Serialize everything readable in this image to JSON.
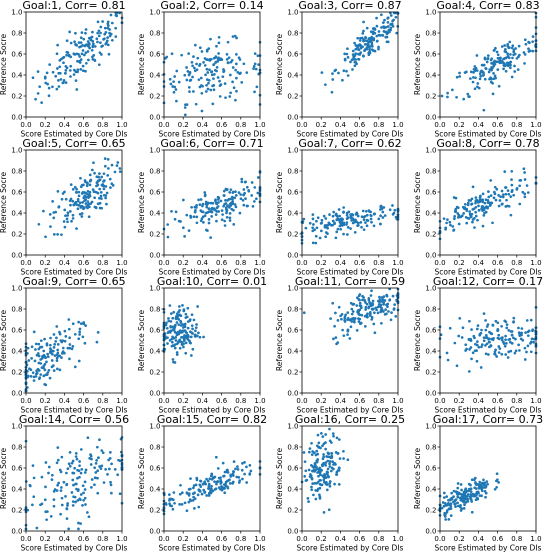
{
  "figure": {
    "series_color": "#1f77b4"
  },
  "chart_data": [
    {
      "type": "scatter",
      "title": "Goal:1, Corr= 0.81",
      "xlabel": "Score Estimated by Core DIs",
      "ylabel": "Reference Socre",
      "xlim": [
        0,
        1
      ],
      "ylim": [
        0,
        1
      ],
      "xticks": [
        "0.0",
        "0.2",
        "0.4",
        "0.6",
        "0.8",
        "1.0"
      ],
      "yticks": [
        "0.0",
        "0.2",
        "0.4",
        "0.6",
        "0.8",
        "1.0"
      ],
      "corr": 0.81,
      "x_center": 0.6,
      "x_spread": 0.23,
      "y_center": 0.62,
      "y_spread": 0.2
    },
    {
      "type": "scatter",
      "title": "Goal:2, Corr= 0.14",
      "xlabel": "Score Estimated by Core DIs",
      "ylabel": "Reference Socre",
      "xlim": [
        0,
        1
      ],
      "ylim": [
        0,
        1
      ],
      "xticks": [
        "0.0",
        "0.2",
        "0.4",
        "0.6",
        "0.8",
        "1.0"
      ],
      "yticks": [
        "0.0",
        "0.2",
        "0.4",
        "0.6",
        "0.8",
        "1.0"
      ],
      "corr": 0.14,
      "x_center": 0.5,
      "x_spread": 0.27,
      "y_center": 0.43,
      "y_spread": 0.14
    },
    {
      "type": "scatter",
      "title": "Goal:3, Corr= 0.87",
      "xlabel": "Score Estimated by Core DIs",
      "ylabel": "Reference Socre",
      "xlim": [
        0,
        1
      ],
      "ylim": [
        0,
        1
      ],
      "xticks": [
        "0.0",
        "0.2",
        "0.4",
        "0.6",
        "0.8",
        "1.0"
      ],
      "yticks": [
        "0.0",
        "0.2",
        "0.4",
        "0.6",
        "0.8",
        "1.0"
      ],
      "corr": 0.87,
      "x_center": 0.72,
      "x_spread": 0.18,
      "y_center": 0.72,
      "y_spread": 0.15
    },
    {
      "type": "scatter",
      "title": "Goal:4, Corr= 0.83",
      "xlabel": "Score Estimated by Core DIs",
      "ylabel": "Reference Socre",
      "xlim": [
        0,
        1
      ],
      "ylim": [
        0,
        1
      ],
      "xticks": [
        "0.0",
        "0.2",
        "0.4",
        "0.6",
        "0.8",
        "1.0"
      ],
      "yticks": [
        "0.0",
        "0.2",
        "0.4",
        "0.6",
        "0.8",
        "1.0"
      ],
      "corr": 0.83,
      "x_center": 0.6,
      "x_spread": 0.25,
      "y_center": 0.5,
      "y_spread": 0.16
    },
    {
      "type": "scatter",
      "title": "Goal:5, Corr= 0.65",
      "xlabel": "Score Estimated by Core DIs",
      "ylabel": "Reference Socre",
      "xlim": [
        0,
        1
      ],
      "ylim": [
        0,
        1
      ],
      "xticks": [
        "0.0",
        "0.2",
        "0.4",
        "0.6",
        "0.8",
        "1.0"
      ],
      "yticks": [
        "0.0",
        "0.2",
        "0.4",
        "0.6",
        "0.8",
        "1.0"
      ],
      "corr": 0.65,
      "x_center": 0.6,
      "x_spread": 0.16,
      "y_center": 0.55,
      "y_spread": 0.15
    },
    {
      "type": "scatter",
      "title": "Goal:6, Corr= 0.71",
      "xlabel": "Score Estimated by Core DIs",
      "ylabel": "Reference Socre",
      "xlim": [
        0,
        1
      ],
      "ylim": [
        0,
        1
      ],
      "xticks": [
        "0.0",
        "0.2",
        "0.4",
        "0.6",
        "0.8",
        "1.0"
      ],
      "yticks": [
        "0.0",
        "0.2",
        "0.4",
        "0.6",
        "0.8",
        "1.0"
      ],
      "corr": 0.71,
      "x_center": 0.6,
      "x_spread": 0.25,
      "y_center": 0.47,
      "y_spread": 0.12
    },
    {
      "type": "scatter",
      "title": "Goal:7, Corr= 0.62",
      "xlabel": "Score Estimated by Core DIs",
      "ylabel": "Reference Socre",
      "xlim": [
        0,
        1
      ],
      "ylim": [
        0,
        1
      ],
      "xticks": [
        "0.0",
        "0.2",
        "0.4",
        "0.6",
        "0.8",
        "1.0"
      ],
      "yticks": [
        "0.0",
        "0.2",
        "0.4",
        "0.6",
        "0.8",
        "1.0"
      ],
      "corr": 0.62,
      "x_center": 0.5,
      "x_spread": 0.28,
      "y_center": 0.33,
      "y_spread": 0.07
    },
    {
      "type": "scatter",
      "title": "Goal:8, Corr= 0.78",
      "xlabel": "Score Estimated by Core DIs",
      "ylabel": "Reference Socre",
      "xlim": [
        0,
        1
      ],
      "ylim": [
        0,
        1
      ],
      "xticks": [
        "0.0",
        "0.2",
        "0.4",
        "0.6",
        "0.8",
        "1.0"
      ],
      "yticks": [
        "0.0",
        "0.2",
        "0.4",
        "0.6",
        "0.8",
        "1.0"
      ],
      "corr": 0.78,
      "x_center": 0.45,
      "x_spread": 0.26,
      "y_center": 0.47,
      "y_spread": 0.13
    },
    {
      "type": "scatter",
      "title": "Goal:9, Corr= 0.65",
      "xlabel": "Score Estimated by Core DIs",
      "ylabel": "Reference Socre",
      "xlim": [
        0,
        1
      ],
      "ylim": [
        0,
        1
      ],
      "xticks": [
        "0.0",
        "0.2",
        "0.4",
        "0.6",
        "0.8",
        "1.0"
      ],
      "yticks": [
        "0.0",
        "0.2",
        "0.4",
        "0.6",
        "0.8",
        "1.0"
      ],
      "corr": 0.65,
      "x_center": 0.18,
      "x_spread": 0.2,
      "y_center": 0.33,
      "y_spread": 0.15
    },
    {
      "type": "scatter",
      "title": "Goal:10, Corr= 0.01",
      "xlabel": "Score Estimated by Core DIs",
      "ylabel": "Reference Socre",
      "xlim": [
        0,
        1
      ],
      "ylim": [
        0,
        1
      ],
      "xticks": [
        "0.0",
        "0.2",
        "0.4",
        "0.6",
        "0.8",
        "1.0"
      ],
      "yticks": [
        "0.0",
        "0.2",
        "0.4",
        "0.6",
        "0.8",
        "1.0"
      ],
      "corr": 0.01,
      "x_center": 0.15,
      "x_spread": 0.1,
      "y_center": 0.58,
      "y_spread": 0.12
    },
    {
      "type": "scatter",
      "title": "Goal:11, Corr= 0.59",
      "xlabel": "Score Estimated by Core DIs",
      "ylabel": "Reference Socre",
      "xlim": [
        0,
        1
      ],
      "ylim": [
        0,
        1
      ],
      "xticks": [
        "0.0",
        "0.2",
        "0.4",
        "0.6",
        "0.8",
        "1.0"
      ],
      "yticks": [
        "0.0",
        "0.2",
        "0.4",
        "0.6",
        "0.8",
        "1.0"
      ],
      "corr": 0.59,
      "x_center": 0.7,
      "x_spread": 0.2,
      "y_center": 0.8,
      "y_spread": 0.12
    },
    {
      "type": "scatter",
      "title": "Goal:12, Corr= 0.17",
      "xlabel": "Score Estimated by Core DIs",
      "ylabel": "Reference Socre",
      "xlim": [
        0,
        1
      ],
      "ylim": [
        0,
        1
      ],
      "xticks": [
        "0.0",
        "0.2",
        "0.4",
        "0.6",
        "0.8",
        "1.0"
      ],
      "yticks": [
        "0.0",
        "0.2",
        "0.4",
        "0.6",
        "0.8",
        "1.0"
      ],
      "corr": 0.17,
      "x_center": 0.6,
      "x_spread": 0.28,
      "y_center": 0.52,
      "y_spread": 0.1
    },
    {
      "type": "scatter",
      "title": "Goal:14, Corr= 0.56",
      "xlabel": "Score Estimated by Core DIs",
      "ylabel": "Reference Socre",
      "xlim": [
        0,
        1
      ],
      "ylim": [
        0,
        1
      ],
      "xticks": [
        "0.0",
        "0.2",
        "0.4",
        "0.6",
        "0.8",
        "1.0"
      ],
      "yticks": [
        "0.0",
        "0.2",
        "0.4",
        "0.6",
        "0.8",
        "1.0"
      ],
      "corr": 0.56,
      "x_center": 0.5,
      "x_spread": 0.28,
      "y_center": 0.45,
      "y_spread": 0.22
    },
    {
      "type": "scatter",
      "title": "Goal:15, Corr= 0.82",
      "xlabel": "Score Estimated by Core DIs",
      "ylabel": "Reference Socre",
      "xlim": [
        0,
        1
      ],
      "ylim": [
        0,
        1
      ],
      "xticks": [
        "0.0",
        "0.2",
        "0.4",
        "0.6",
        "0.8",
        "1.0"
      ],
      "yticks": [
        "0.0",
        "0.2",
        "0.4",
        "0.6",
        "0.8",
        "1.0"
      ],
      "corr": 0.82,
      "x_center": 0.45,
      "x_spread": 0.26,
      "y_center": 0.42,
      "y_spread": 0.12
    },
    {
      "type": "scatter",
      "title": "Goal:16, Corr= 0.25",
      "xlabel": "Score Estimated by Core DIs",
      "ylabel": "Reference Socre",
      "xlim": [
        0,
        1
      ],
      "ylim": [
        0,
        1
      ],
      "xticks": [
        "0.0",
        "0.2",
        "0.4",
        "0.6",
        "0.8",
        "1.0"
      ],
      "yticks": [
        "0.0",
        "0.2",
        "0.4",
        "0.6",
        "0.8",
        "1.0"
      ],
      "corr": 0.25,
      "x_center": 0.22,
      "x_spread": 0.1,
      "y_center": 0.62,
      "y_spread": 0.15
    },
    {
      "type": "scatter",
      "title": "Goal:17, Corr= 0.73",
      "xlabel": "Score Estimated by Core DIs",
      "ylabel": "Reference Socre",
      "xlim": [
        0,
        1
      ],
      "ylim": [
        0,
        1
      ],
      "xticks": [
        "0.0",
        "0.2",
        "0.4",
        "0.6",
        "0.8",
        "1.0"
      ],
      "yticks": [
        "0.0",
        "0.2",
        "0.4",
        "0.6",
        "0.8",
        "1.0"
      ],
      "corr": 0.73,
      "x_center": 0.25,
      "x_spread": 0.14,
      "y_center": 0.33,
      "y_spread": 0.09
    }
  ]
}
